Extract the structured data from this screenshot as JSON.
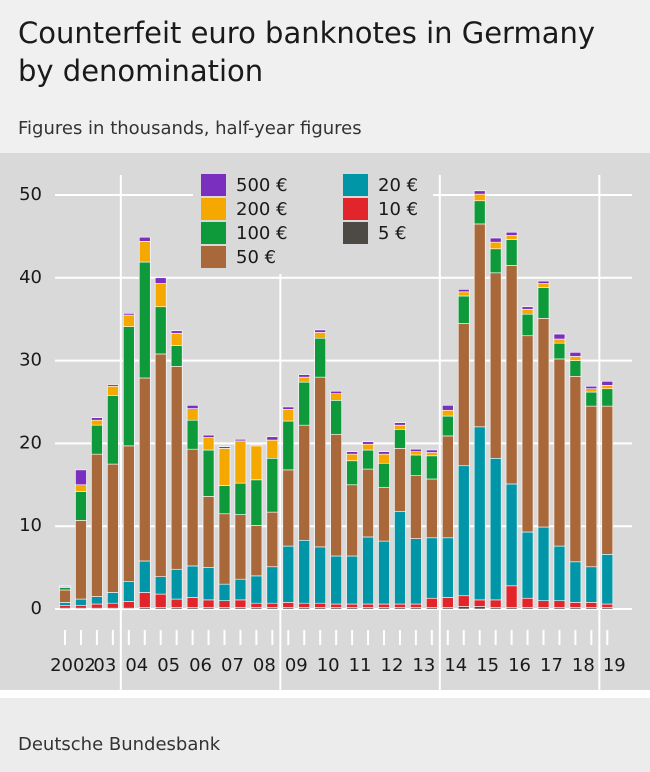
{
  "chart_data": {
    "type": "stacked_bar",
    "title": [
      "Counterfeit euro banknotes in Germany",
      "by denomination"
    ],
    "subtitle": "Figures in thousands, half-year figures",
    "source": "Deutsche Bundesbank",
    "categories": [
      "2002",
      null,
      "03",
      null,
      "04",
      null,
      "05",
      null,
      "06",
      null,
      "07",
      null,
      "08",
      null,
      "09",
      null,
      "10",
      null,
      "11",
      null,
      "12",
      null,
      "13",
      null,
      "14",
      null,
      "15",
      null,
      "16",
      null,
      "17",
      null,
      "18",
      null,
      "19"
    ],
    "ylim": [
      0,
      52
    ],
    "yticks": [
      0,
      10,
      20,
      30,
      40,
      50
    ],
    "grid": true,
    "series": [
      {
        "name": "500 €",
        "color": "#7b2fbf",
        "values": [
          0.1,
          1.8,
          0.3,
          0.2,
          0.2,
          0.5,
          0.7,
          0.3,
          0.4,
          0.3,
          0.2,
          0.2,
          0.1,
          0.4,
          0.3,
          0.3,
          0.3,
          0.3,
          0.3,
          0.3,
          0.3,
          0.3,
          0.3,
          0.3,
          0.6,
          0.3,
          0.4,
          0.5,
          0.4,
          0.3,
          0.3,
          0.6,
          0.5,
          0.3,
          0.5
        ]
      },
      {
        "name": "200 €",
        "color": "#f5a800",
        "values": [
          0.1,
          0.8,
          0.6,
          1.1,
          1.4,
          2.5,
          2.8,
          1.5,
          1.4,
          1.5,
          4.5,
          5.1,
          4.1,
          2.2,
          1.4,
          0.6,
          0.7,
          0.8,
          0.8,
          0.7,
          1.1,
          0.5,
          0.4,
          0.4,
          0.7,
          0.5,
          0.8,
          0.8,
          0.5,
          0.6,
          0.5,
          0.5,
          0.5,
          0.4,
          0.4
        ]
      },
      {
        "name": "100 €",
        "color": "#0e9a3a",
        "values": [
          0.3,
          3.5,
          3.5,
          8.3,
          14.4,
          14.0,
          5.7,
          2.5,
          3.5,
          5.6,
          3.4,
          3.8,
          5.5,
          6.5,
          5.9,
          5.2,
          4.7,
          4.1,
          2.9,
          2.3,
          2.9,
          2.3,
          2.5,
          2.8,
          2.4,
          3.3,
          2.8,
          2.9,
          3.1,
          2.6,
          3.7,
          1.9,
          1.9,
          1.7,
          2.1
        ]
      },
      {
        "name": "50 €",
        "color": "#a8683a",
        "values": [
          1.5,
          9.5,
          17.2,
          15.5,
          16.4,
          22.1,
          26.9,
          24.5,
          14.1,
          8.6,
          8.5,
          7.8,
          6.1,
          6.6,
          9.2,
          13.9,
          20.5,
          14.7,
          8.6,
          8.2,
          6.5,
          7.6,
          7.6,
          7.1,
          12.3,
          17.2,
          24.5,
          22.4,
          26.4,
          23.7,
          25.2,
          22.6,
          22.4,
          19.4,
          17.9
        ]
      },
      {
        "name": "20 €",
        "color": "#0096a8",
        "values": [
          0.4,
          0.8,
          0.9,
          1.3,
          2.4,
          3.8,
          2.1,
          3.6,
          3.8,
          3.9,
          2.0,
          2.5,
          3.3,
          4.4,
          6.8,
          7.6,
          6.8,
          5.8,
          5.8,
          8.1,
          7.6,
          11.2,
          7.9,
          7.3,
          7.2,
          15.7,
          20.9,
          17.1,
          12.3,
          8.0,
          8.9,
          6.6,
          4.9,
          4.3,
          6.0
        ]
      },
      {
        "name": "10 €",
        "color": "#e2252b",
        "values": [
          0.3,
          0.3,
          0.5,
          0.6,
          0.8,
          1.8,
          1.6,
          1.0,
          1.2,
          0.9,
          0.8,
          0.9,
          0.5,
          0.5,
          0.6,
          0.5,
          0.5,
          0.4,
          0.4,
          0.4,
          0.4,
          0.4,
          0.4,
          1.1,
          1.2,
          1.3,
          0.8,
          0.9,
          2.6,
          1.1,
          0.8,
          0.8,
          0.6,
          0.6,
          0.4
        ]
      },
      {
        "name": "5 €",
        "color": "#4d4a45",
        "values": [
          0.1,
          0.1,
          0.1,
          0.1,
          0.1,
          0.2,
          0.2,
          0.2,
          0.2,
          0.2,
          0.2,
          0.2,
          0.2,
          0.2,
          0.2,
          0.2,
          0.2,
          0.2,
          0.2,
          0.2,
          0.2,
          0.2,
          0.2,
          0.2,
          0.2,
          0.3,
          0.3,
          0.2,
          0.2,
          0.2,
          0.2,
          0.2,
          0.2,
          0.2,
          0.2
        ]
      }
    ]
  }
}
